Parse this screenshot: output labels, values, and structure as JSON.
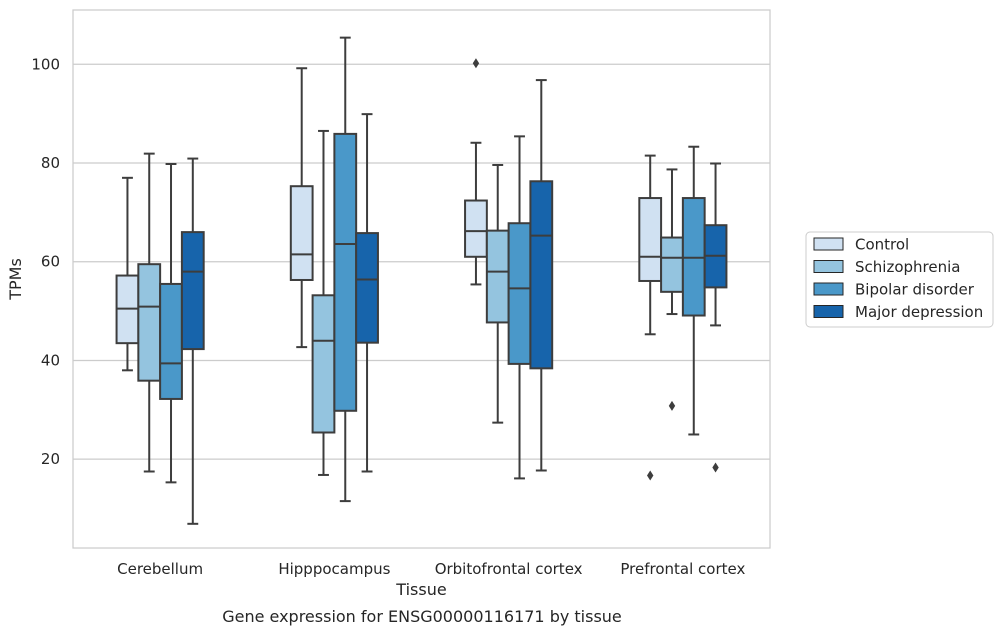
{
  "chart_data": {
    "type": "box",
    "title": "",
    "caption": "Gene expression for ENSG00000116171 by tissue",
    "xlabel": "Tissue",
    "ylabel": "TPMs",
    "ylim": [
      2,
      111
    ],
    "yticks": [
      20,
      40,
      60,
      80,
      100
    ],
    "grid": "horizontal",
    "legend_position": "right",
    "categories": [
      "Cerebellum",
      "Hipppocampus",
      "Orbitofrontal cortex",
      "Prefrontal cortex"
    ],
    "series": [
      {
        "name": "Control",
        "color": "#d0e1f2",
        "boxes": [
          {
            "whisker_low": 38,
            "q1": 43.5,
            "median": 50.5,
            "q3": 57.2,
            "whisker_high": 77,
            "outliers": []
          },
          {
            "whisker_low": 42.7,
            "q1": 56.3,
            "median": 61.5,
            "q3": 75.3,
            "whisker_high": 99.2,
            "outliers": []
          },
          {
            "whisker_low": 55.4,
            "q1": 61,
            "median": 66.2,
            "q3": 72.4,
            "whisker_high": 84.1,
            "outliers": [
              100.2
            ]
          },
          {
            "whisker_low": 45.3,
            "q1": 56.1,
            "median": 61,
            "q3": 72.9,
            "whisker_high": 81.5,
            "outliers": [
              16.7
            ]
          }
        ]
      },
      {
        "name": "Schizophrenia",
        "color": "#94c4df",
        "boxes": [
          {
            "whisker_low": 17.5,
            "q1": 35.9,
            "median": 50.9,
            "q3": 59.5,
            "whisker_high": 81.9,
            "outliers": []
          },
          {
            "whisker_low": 16.8,
            "q1": 25.4,
            "median": 44,
            "q3": 53.2,
            "whisker_high": 86.5,
            "outliers": []
          },
          {
            "whisker_low": 27.4,
            "q1": 47.7,
            "median": 58,
            "q3": 66.3,
            "whisker_high": 79.6,
            "outliers": []
          },
          {
            "whisker_low": 49.4,
            "q1": 53.9,
            "median": 60.8,
            "q3": 64.9,
            "whisker_high": 78.7,
            "outliers": [
              30.8
            ]
          }
        ]
      },
      {
        "name": "Bipolar disorder",
        "color": "#4a98c9",
        "boxes": [
          {
            "whisker_low": 15.3,
            "q1": 32.2,
            "median": 39.4,
            "q3": 55.5,
            "whisker_high": 79.8,
            "outliers": []
          },
          {
            "whisker_low": 11.5,
            "q1": 29.8,
            "median": 63.6,
            "q3": 85.9,
            "whisker_high": 105.4,
            "outliers": []
          },
          {
            "whisker_low": 16.1,
            "q1": 39.3,
            "median": 54.6,
            "q3": 67.8,
            "whisker_high": 85.4,
            "outliers": []
          },
          {
            "whisker_low": 25,
            "q1": 49.1,
            "median": 60.8,
            "q3": 72.9,
            "whisker_high": 83.3,
            "outliers": []
          }
        ]
      },
      {
        "name": "Major depression",
        "color": "#1764ab",
        "boxes": [
          {
            "whisker_low": 6.9,
            "q1": 42.3,
            "median": 58,
            "q3": 66,
            "whisker_high": 80.9,
            "outliers": []
          },
          {
            "whisker_low": 17.5,
            "q1": 43.6,
            "median": 56.4,
            "q3": 65.8,
            "whisker_high": 89.9,
            "outliers": []
          },
          {
            "whisker_low": 17.7,
            "q1": 38.4,
            "median": 65.3,
            "q3": 76.3,
            "whisker_high": 96.8,
            "outliers": []
          },
          {
            "whisker_low": 47.1,
            "q1": 54.8,
            "median": 61.2,
            "q3": 67.4,
            "whisker_high": 79.9,
            "outliers": [
              18.3
            ]
          }
        ]
      }
    ]
  }
}
